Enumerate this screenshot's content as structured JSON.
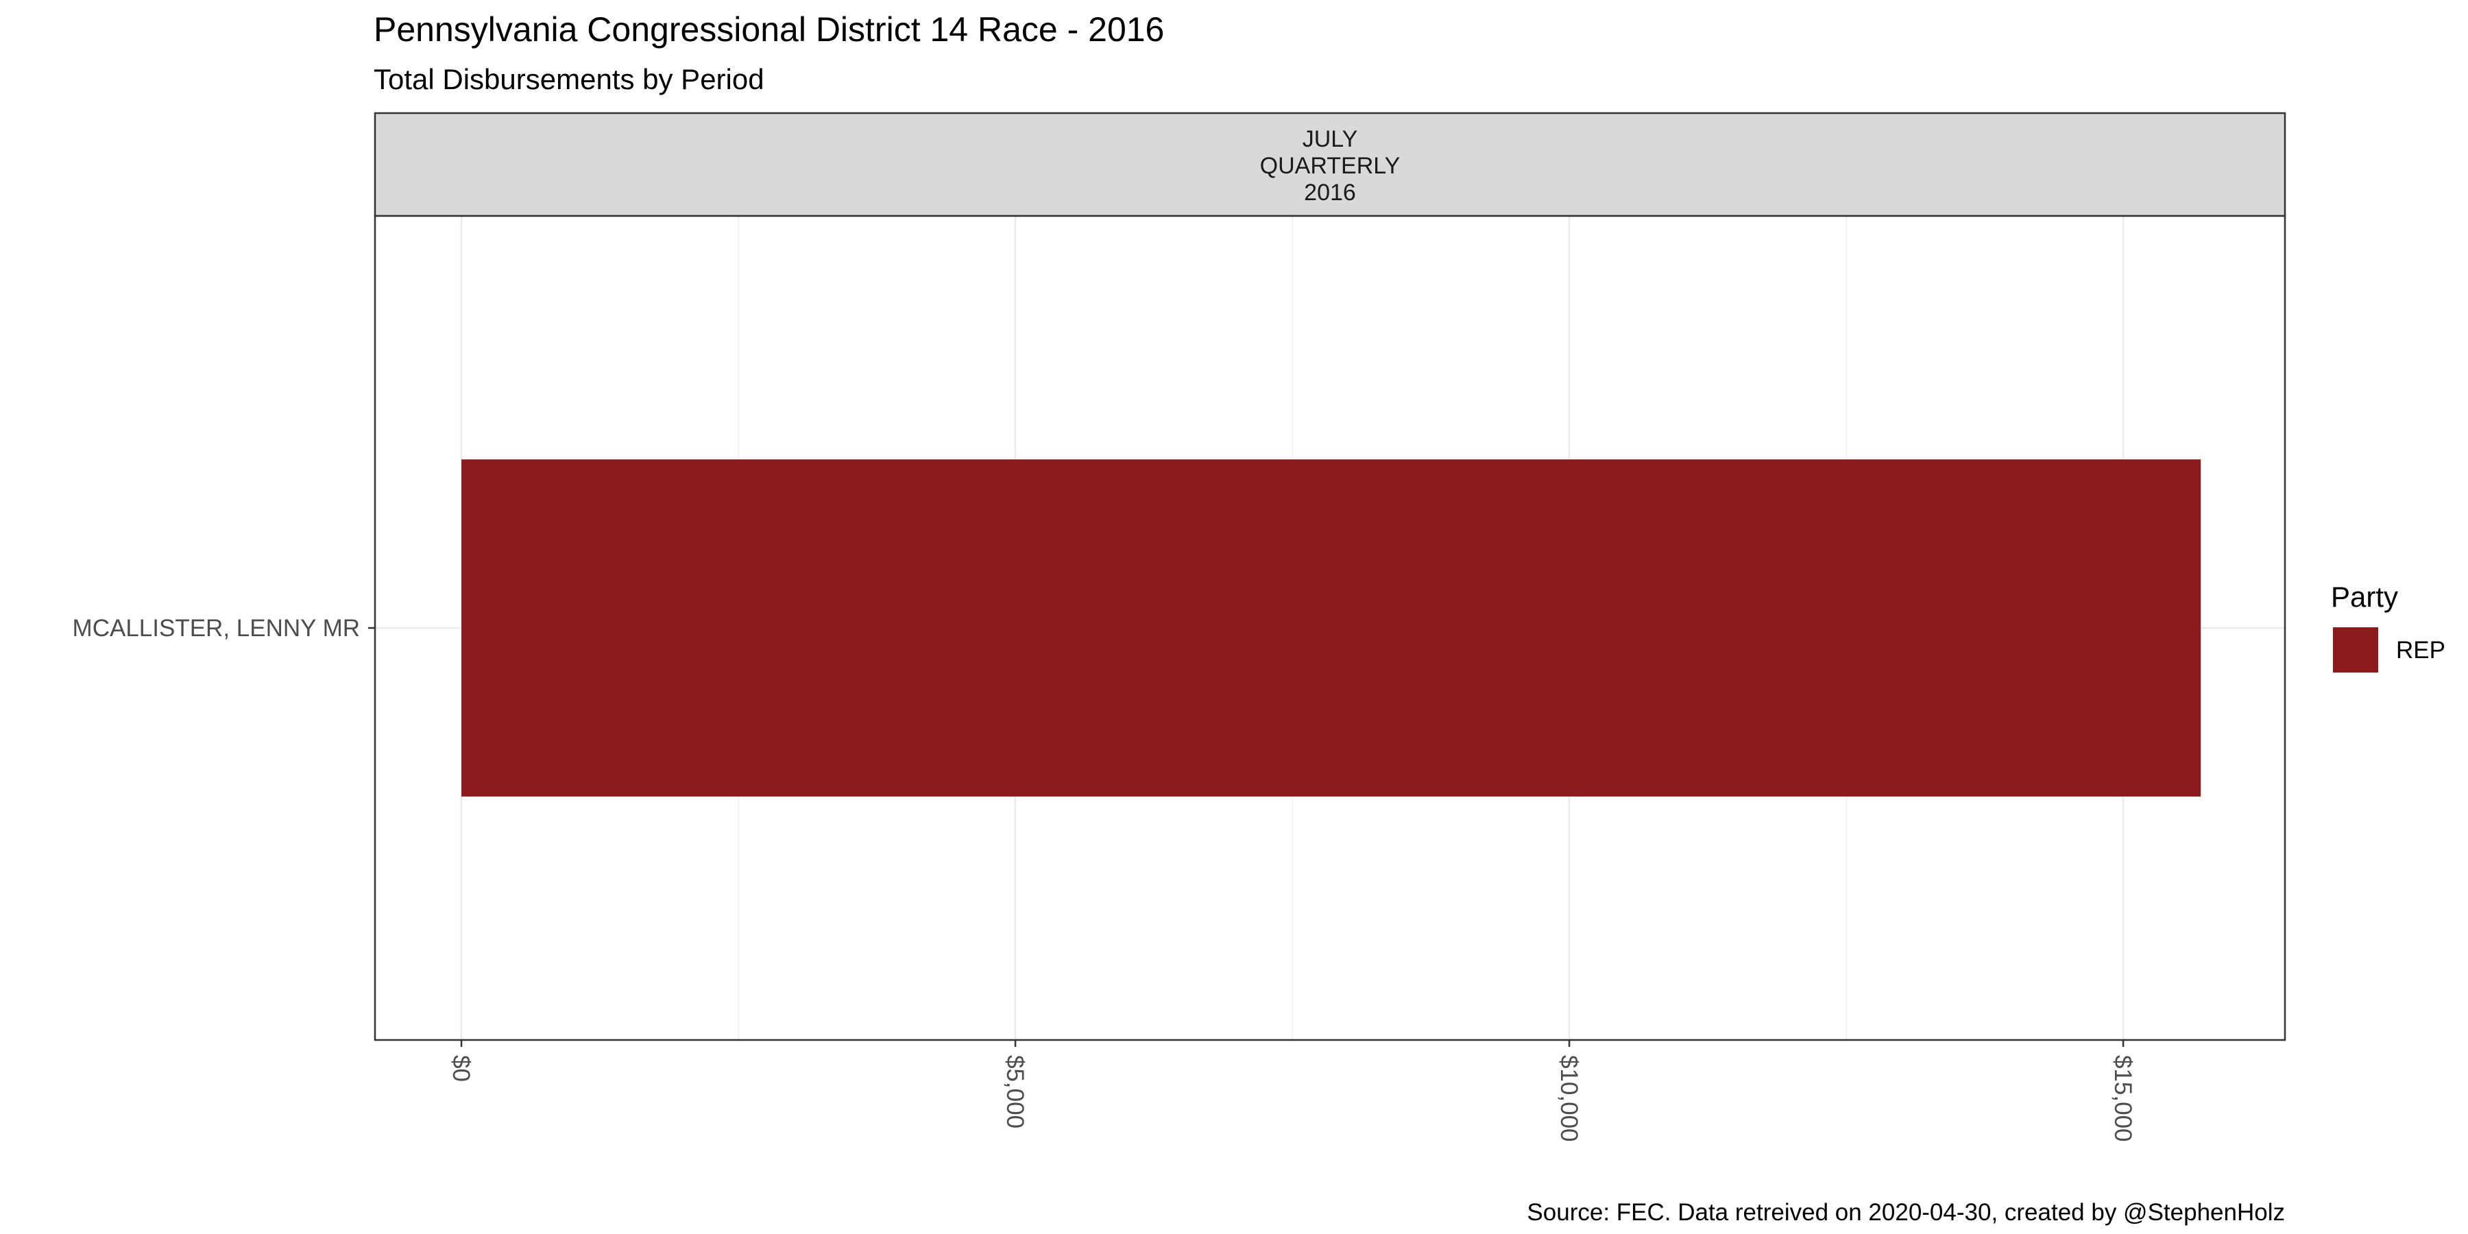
{
  "chart_data": {
    "type": "bar",
    "orientation": "horizontal",
    "title": "Pennsylvania Congressional District 14 Race - 2016",
    "subtitle": "Total Disbursements by Period",
    "facet_label": [
      "JULY",
      "QUARTERLY",
      "2016"
    ],
    "categories": [
      "MCALLISTER, LENNY MR"
    ],
    "series": [
      {
        "name": "REP",
        "values": [
          15700
        ]
      }
    ],
    "xlabel": "",
    "ylabel": "",
    "xlim": [
      -780,
      16460
    ],
    "x_ticks": [
      0,
      5000,
      10000,
      15000
    ],
    "x_tick_labels": [
      "$0",
      "$5,000",
      "$10,000",
      "$15,000"
    ],
    "x_tick_label_rotation": "vertical",
    "grid": true,
    "legend": {
      "title": "Party",
      "position": "right",
      "entries": [
        {
          "label": "REP",
          "color": "#8b1a1c"
        }
      ]
    },
    "caption": "Source: FEC. Data retreived on 2020-04-30, created by @StephenHolz"
  },
  "colors": {
    "bar": "#8b1a1c",
    "strip_background": "#d9d9d9",
    "panel_border": "#333333",
    "grid_major": "#ebebeb",
    "grid_minor": "#f4f4f4",
    "tick_text": "#4d4d4d"
  }
}
